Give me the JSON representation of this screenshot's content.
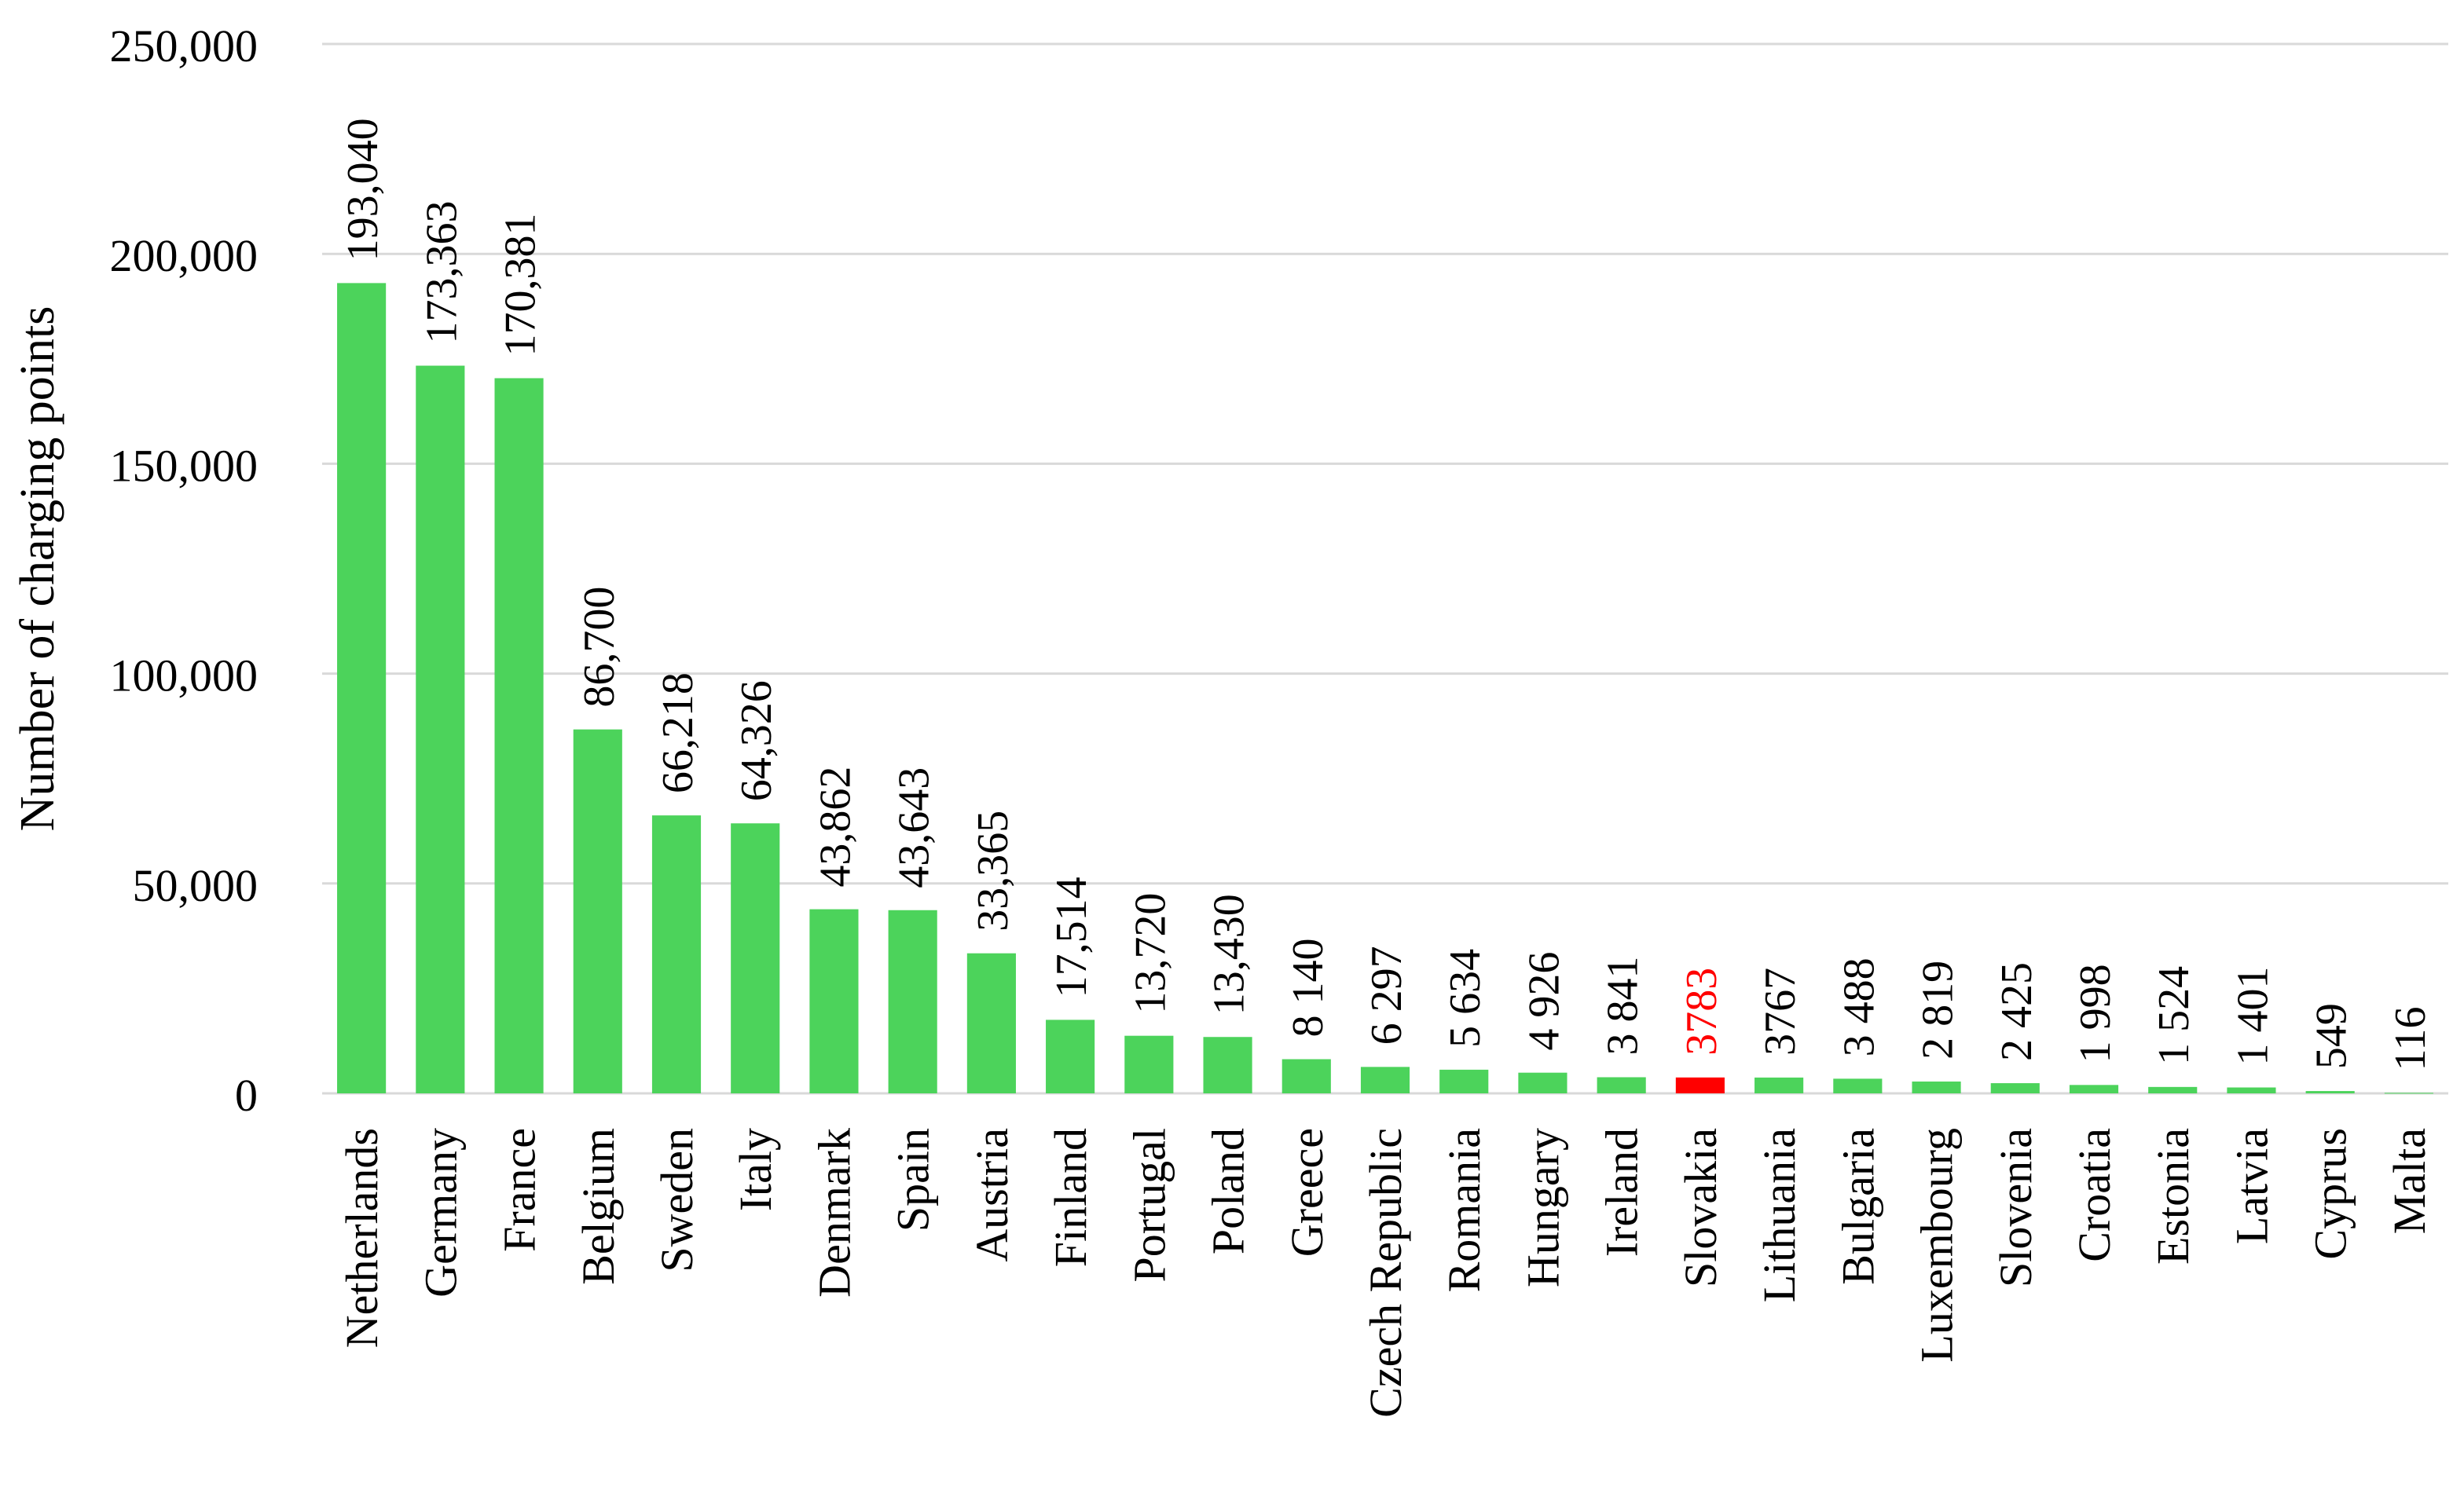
{
  "chart_data": {
    "type": "bar",
    "title": "",
    "xlabel": "",
    "ylabel": "Number of charging points",
    "ylim": [
      0,
      250000
    ],
    "yticks": [
      {
        "value": 0,
        "label": "0"
      },
      {
        "value": 50000,
        "label": "50,000"
      },
      {
        "value": 100000,
        "label": "100,000"
      },
      {
        "value": 150000,
        "label": "150,000"
      },
      {
        "value": 200000,
        "label": "200,000"
      },
      {
        "value": 250000,
        "label": "250,000"
      }
    ],
    "grid": true,
    "legend": "none",
    "colors": {
      "default_bar": "#4cd35b",
      "highlight_bar": "#ff0000",
      "highlight_label": "#ff0000",
      "grid": "#d9d9d9",
      "text": "#000000"
    },
    "highlight": "Slovakia",
    "categories": [
      "Netherlands",
      "Germany",
      "France",
      "Belgium",
      "Sweden",
      "Italy",
      "Denmark",
      "Spain",
      "Austria",
      "Finland",
      "Portugal",
      "Poland",
      "Greece",
      "Czech Republic",
      "Romania",
      "Hungary",
      "Ireland",
      "Slovakia",
      "Lithuania",
      "Bulgaria",
      "Luxembourg",
      "Slovenia",
      "Croatia",
      "Estonia",
      "Latvia",
      "Cyprus",
      "Malta"
    ],
    "values": [
      193040,
      173363,
      170381,
      86700,
      66218,
      64326,
      43862,
      43643,
      33365,
      17514,
      13720,
      13430,
      8140,
      6297,
      5634,
      4926,
      3841,
      3783,
      3767,
      3488,
      2819,
      2425,
      1998,
      1524,
      1401,
      549,
      116
    ],
    "data_labels": [
      "193,040",
      "173,363",
      "170,381",
      "86,700",
      "66,218",
      "64,326",
      "43,862",
      "43,643",
      "33,365",
      "17,514",
      "13,720",
      "13,430",
      "8 140",
      "6 297",
      "5 634",
      "4 926",
      "3 841",
      "3783",
      "3767",
      "3 488",
      "2 819",
      "2 425",
      "1 998",
      "1 524",
      "1 401",
      "549",
      "116"
    ]
  }
}
